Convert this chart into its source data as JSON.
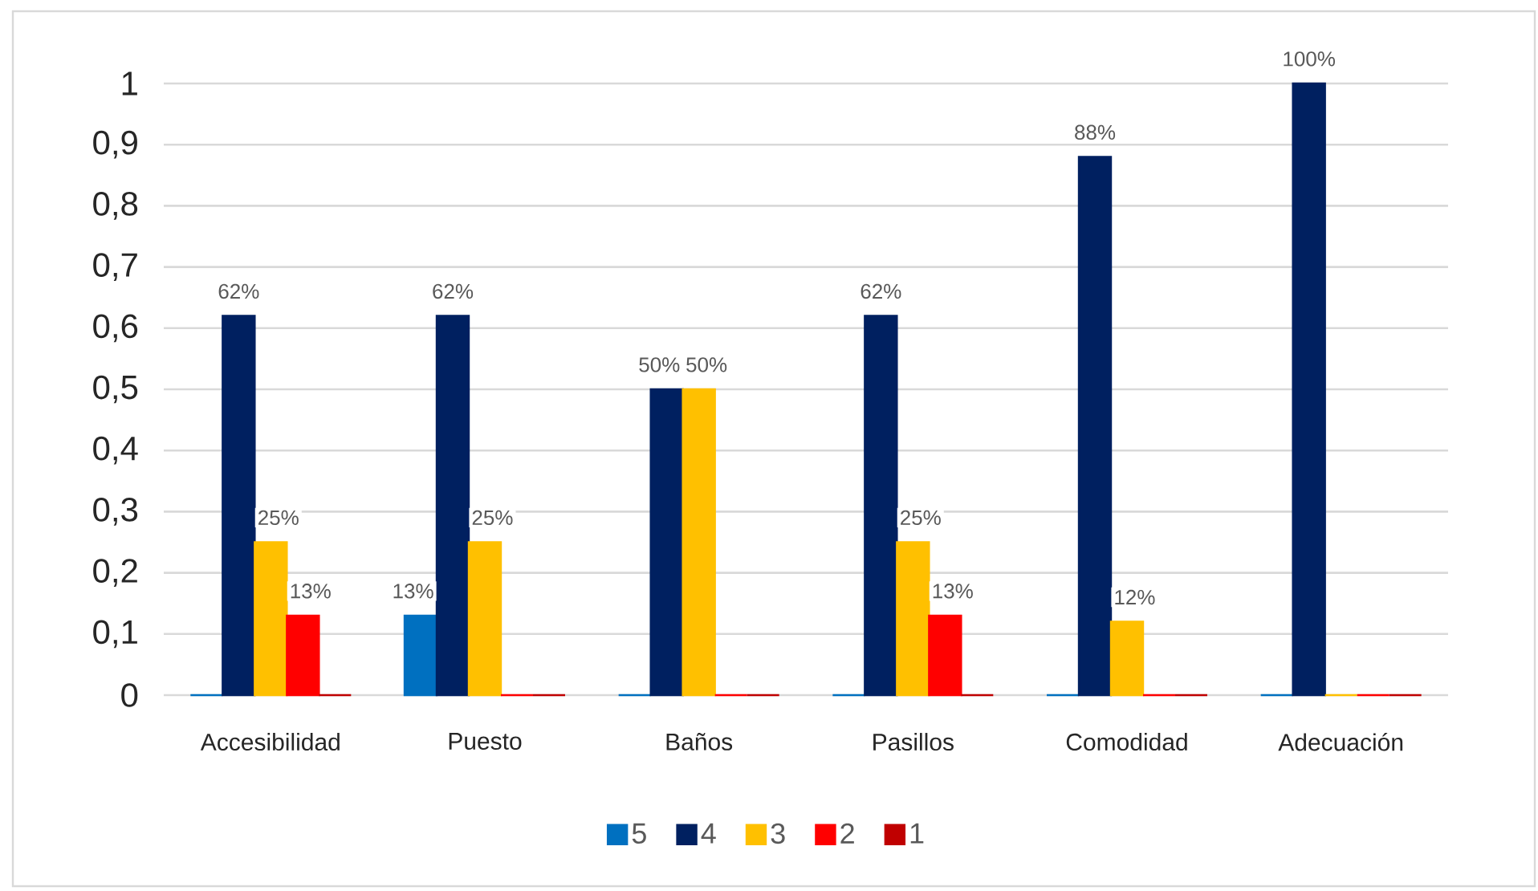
{
  "chart_data": {
    "type": "bar",
    "categories": [
      "Accesibilidad",
      "Puesto",
      "Baños",
      "Pasillos",
      "Comodidad",
      "Adecuación"
    ],
    "series": [
      {
        "name": "5",
        "color": "#0070c0",
        "values": [
          0,
          0.13,
          0,
          0,
          0,
          0
        ],
        "value_labels": [
          null,
          "13%",
          null,
          null,
          null,
          null
        ]
      },
      {
        "name": "4",
        "color": "#002060",
        "values": [
          0.62,
          0.62,
          0.5,
          0.62,
          0.88,
          1
        ],
        "value_labels": [
          "62%",
          "62%",
          "50%",
          "62%",
          "88%",
          "100%"
        ]
      },
      {
        "name": "3",
        "color": "#ffc000",
        "values": [
          0.25,
          0.25,
          0.5,
          0.25,
          0.12,
          0
        ],
        "value_labels": [
          "25%",
          "25%",
          "50%",
          "25%",
          "12%",
          null
        ]
      },
      {
        "name": "2",
        "color": "#ff0000",
        "values": [
          0.13,
          0,
          0,
          0.13,
          0,
          0
        ],
        "value_labels": [
          "13%",
          null,
          null,
          "13%",
          null,
          null
        ]
      },
      {
        "name": "1",
        "color": "#c00000",
        "values": [
          0,
          0,
          0,
          0,
          0,
          0
        ],
        "value_labels": [
          null,
          null,
          null,
          null,
          null,
          null
        ]
      }
    ],
    "ylim": [
      0,
      1
    ],
    "yticks": [
      0,
      {
        "value": 0.1,
        "label": "0,1"
      },
      {
        "value": 0.2,
        "label": "0,2"
      },
      {
        "value": 0.3,
        "label": "0,3"
      },
      {
        "value": 0.4,
        "label": "0,4"
      },
      {
        "value": 0.5,
        "label": "0,5"
      },
      {
        "value": 0.6,
        "label": "0,6"
      },
      {
        "value": 0.7,
        "label": "0,7"
      },
      {
        "value": 0.8,
        "label": "0,8"
      },
      {
        "value": 0.9,
        "label": "0,9"
      },
      1
    ],
    "grid": "y",
    "legend": "bottom"
  }
}
